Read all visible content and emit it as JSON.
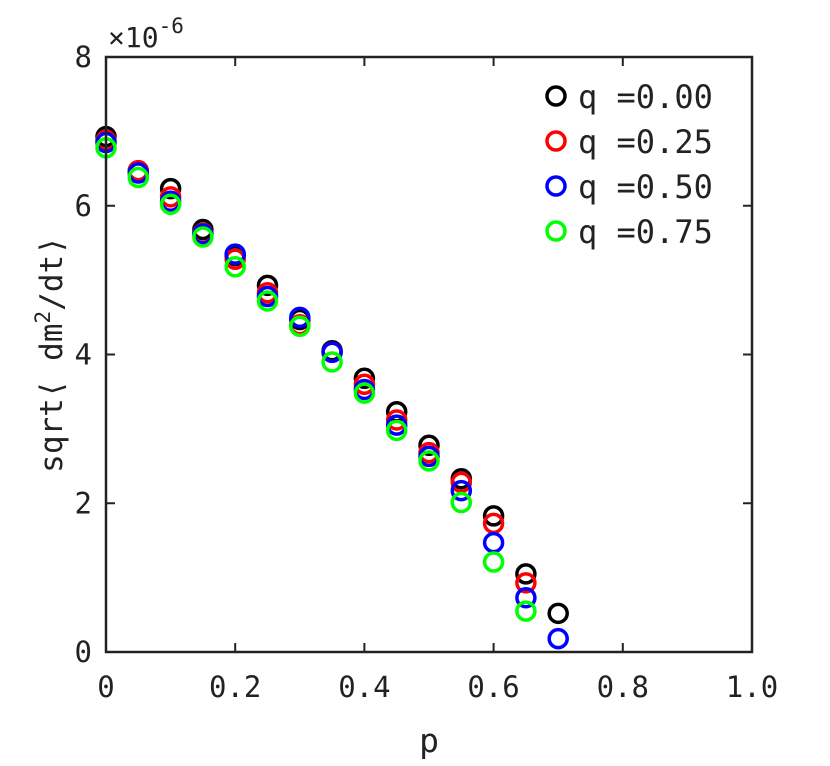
{
  "chart_data": {
    "type": "scatter",
    "title": "",
    "xlabel": "p",
    "ylabel_parts": {
      "prefix": "sqrt⟨ dm",
      "superscript": "2",
      "suffix": "/dt⟩"
    },
    "ylabel": "sqrt⟨ dm^2/dt⟩",
    "xlim": [
      0,
      1.0
    ],
    "ylim": [
      0,
      8e-06
    ],
    "xticks": [
      0,
      0.2,
      0.4,
      0.6,
      0.8,
      1.0
    ],
    "xtick_labels": [
      "0",
      "0.2",
      "0.4",
      "0.6",
      "0.8",
      "1.0"
    ],
    "yticks": [
      0,
      2e-06,
      4e-06,
      6e-06,
      8e-06
    ],
    "ytick_labels": [
      "0",
      "2",
      "4",
      "6",
      "8"
    ],
    "y_exponent": {
      "base": "×10",
      "power": "-6"
    },
    "marker": "open-circle",
    "grid": false,
    "legend": {
      "location": "top-right",
      "entries": [
        "q =0.00",
        "q =0.25",
        "q =0.50",
        "q =0.75"
      ]
    },
    "series": [
      {
        "name": "q =0.00",
        "color": "#000000",
        "x": [
          0.0,
          0.05,
          0.1,
          0.15,
          0.2,
          0.25,
          0.3,
          0.35,
          0.4,
          0.45,
          0.5,
          0.55,
          0.6,
          0.65,
          0.7
        ],
        "y": [
          6.93e-06,
          6.47e-06,
          6.23e-06,
          5.68e-06,
          5.33e-06,
          4.93e-06,
          4.47e-06,
          4.05e-06,
          3.68e-06,
          3.23e-06,
          2.78e-06,
          2.33e-06,
          1.83e-06,
          1.05e-06,
          5.2e-07
        ]
      },
      {
        "name": "q =0.25",
        "color": "#ff0000",
        "x": [
          0.0,
          0.05,
          0.1,
          0.15,
          0.2,
          0.25,
          0.3,
          0.35,
          0.4,
          0.45,
          0.5,
          0.55,
          0.6,
          0.65
        ],
        "y": [
          6.88e-06,
          6.47e-06,
          6.12e-06,
          5.63e-06,
          5.28e-06,
          4.83e-06,
          4.4e-06,
          4.03e-06,
          3.6e-06,
          3.12e-06,
          2.68e-06,
          2.28e-06,
          1.73e-06,
          9.3e-07
        ]
      },
      {
        "name": "q =0.50",
        "color": "#0000ff",
        "x": [
          0.0,
          0.05,
          0.1,
          0.15,
          0.2,
          0.25,
          0.3,
          0.35,
          0.4,
          0.45,
          0.5,
          0.55,
          0.6,
          0.65,
          0.7
        ],
        "y": [
          6.85e-06,
          6.44e-06,
          6.06e-06,
          5.62e-06,
          5.35e-06,
          4.78e-06,
          4.5e-06,
          4.03e-06,
          3.53e-06,
          3.05e-06,
          2.63e-06,
          2.17e-06,
          1.47e-06,
          7.3e-07,
          1.8e-07
        ]
      },
      {
        "name": "q =0.75",
        "color": "#00ff00",
        "x": [
          0.0,
          0.05,
          0.1,
          0.15,
          0.2,
          0.25,
          0.3,
          0.35,
          0.4,
          0.45,
          0.5,
          0.55,
          0.6,
          0.65
        ],
        "y": [
          6.78e-06,
          6.38e-06,
          6.02e-06,
          5.58e-06,
          5.18e-06,
          4.72e-06,
          4.38e-06,
          3.9e-06,
          3.48e-06,
          2.98e-06,
          2.57e-06,
          2.01e-06,
          1.21e-06,
          5.5e-07
        ]
      }
    ]
  }
}
